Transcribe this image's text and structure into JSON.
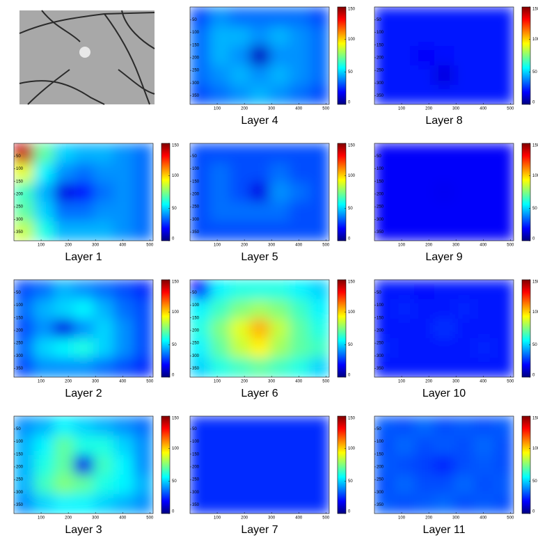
{
  "chart_data": [
    {
      "type": "heatmap",
      "title": "Layer 1",
      "colormap": "jet",
      "xlim": [
        0,
        512
      ],
      "ylim": [
        0,
        384
      ],
      "y_direction": "reverse",
      "xticks": [
        100,
        200,
        300,
        400,
        500
      ],
      "yticks": [
        50,
        100,
        150,
        200,
        250,
        300,
        350
      ],
      "clim": [
        0,
        150
      ],
      "cticks": [
        0,
        50,
        100,
        150
      ],
      "values": [
        [
          140,
          70,
          50,
          45,
          45,
          40,
          35
        ],
        [
          90,
          55,
          40,
          35,
          40,
          40,
          35
        ],
        [
          65,
          45,
          15,
          20,
          35,
          40,
          35
        ],
        [
          70,
          50,
          35,
          35,
          40,
          40,
          35
        ],
        [
          85,
          60,
          45,
          45,
          45,
          40,
          35
        ]
      ]
    },
    {
      "type": "heatmap",
      "title": "Layer 2",
      "colormap": "jet",
      "xlim": [
        0,
        512
      ],
      "ylim": [
        0,
        384
      ],
      "y_direction": "reverse",
      "xticks": [
        100,
        200,
        300,
        400,
        500
      ],
      "yticks": [
        50,
        100,
        150,
        200,
        250,
        300,
        350
      ],
      "clim": [
        0,
        150
      ],
      "cticks": [
        0,
        50,
        100,
        150
      ],
      "values": [
        [
          30,
          35,
          45,
          40,
          35,
          30,
          25
        ],
        [
          35,
          45,
          50,
          55,
          45,
          35,
          30
        ],
        [
          30,
          40,
          15,
          40,
          50,
          40,
          30
        ],
        [
          35,
          50,
          55,
          60,
          50,
          40,
          30
        ],
        [
          30,
          40,
          40,
          40,
          35,
          30,
          25
        ]
      ]
    },
    {
      "type": "heatmap",
      "title": "Layer 3",
      "colormap": "jet",
      "xlim": [
        0,
        512
      ],
      "ylim": [
        0,
        384
      ],
      "y_direction": "reverse",
      "xticks": [
        100,
        200,
        300,
        400,
        500
      ],
      "yticks": [
        50,
        100,
        150,
        200,
        250,
        300,
        350
      ],
      "clim": [
        0,
        150
      ],
      "cticks": [
        0,
        50,
        100,
        150
      ],
      "values": [
        [
          40,
          45,
          55,
          50,
          45,
          40,
          35
        ],
        [
          45,
          55,
          70,
          60,
          60,
          50,
          40
        ],
        [
          45,
          60,
          70,
          15,
          65,
          55,
          40
        ],
        [
          45,
          65,
          75,
          70,
          60,
          55,
          45
        ],
        [
          40,
          50,
          55,
          55,
          50,
          45,
          40
        ]
      ]
    },
    {
      "type": "heatmap",
      "title": "Layer 4",
      "colormap": "jet",
      "xlim": [
        0,
        512
      ],
      "ylim": [
        0,
        384
      ],
      "y_direction": "reverse",
      "xticks": [
        100,
        200,
        300,
        400,
        500
      ],
      "yticks": [
        50,
        100,
        150,
        200,
        250,
        300,
        350
      ],
      "clim": [
        0,
        150
      ],
      "cticks": [
        0,
        50,
        100,
        150
      ],
      "values": [
        [
          30,
          40,
          35,
          35,
          35,
          35,
          30
        ],
        [
          35,
          45,
          45,
          40,
          45,
          40,
          35
        ],
        [
          35,
          45,
          40,
          10,
          40,
          40,
          35
        ],
        [
          35,
          40,
          45,
          40,
          45,
          40,
          35
        ],
        [
          30,
          35,
          40,
          45,
          40,
          35,
          30
        ]
      ]
    },
    {
      "type": "heatmap",
      "title": "Layer 5",
      "colormap": "jet",
      "xlim": [
        0,
        512
      ],
      "ylim": [
        0,
        384
      ],
      "y_direction": "reverse",
      "xticks": [
        100,
        200,
        300,
        400,
        500
      ],
      "yticks": [
        50,
        100,
        150,
        200,
        250,
        300,
        350
      ],
      "clim": [
        0,
        150
      ],
      "cticks": [
        0,
        50,
        100,
        150
      ],
      "values": [
        [
          30,
          30,
          30,
          30,
          30,
          30,
          30
        ],
        [
          30,
          35,
          30,
          30,
          35,
          30,
          30
        ],
        [
          30,
          35,
          30,
          15,
          40,
          35,
          30
        ],
        [
          30,
          35,
          35,
          35,
          35,
          30,
          30
        ],
        [
          30,
          30,
          30,
          30,
          30,
          30,
          30
        ]
      ]
    },
    {
      "type": "heatmap",
      "title": "Layer 6",
      "colormap": "jet",
      "xlim": [
        0,
        512
      ],
      "ylim": [
        0,
        384
      ],
      "y_direction": "reverse",
      "xticks": [
        100,
        200,
        300,
        400,
        500
      ],
      "yticks": [
        50,
        100,
        150,
        200,
        250,
        300,
        350
      ],
      "clim": [
        0,
        150
      ],
      "cticks": [
        0,
        50,
        100,
        150
      ],
      "values": [
        [
          20,
          55,
          60,
          60,
          60,
          55,
          50
        ],
        [
          55,
          65,
          75,
          80,
          75,
          65,
          55
        ],
        [
          60,
          75,
          90,
          105,
          85,
          70,
          60
        ],
        [
          55,
          70,
          85,
          95,
          80,
          70,
          65
        ],
        [
          50,
          60,
          65,
          70,
          65,
          60,
          50
        ]
      ]
    },
    {
      "type": "heatmap",
      "title": "Layer 7",
      "colormap": "jet",
      "xlim": [
        0,
        512
      ],
      "ylim": [
        0,
        384
      ],
      "y_direction": "reverse",
      "xticks": [
        100,
        200,
        300,
        400,
        500
      ],
      "yticks": [
        50,
        100,
        150,
        200,
        250,
        300,
        350
      ],
      "clim": [
        0,
        150
      ],
      "cticks": [
        0,
        50,
        100,
        150
      ],
      "values": [
        [
          25,
          25,
          25,
          25,
          25,
          25,
          25
        ],
        [
          25,
          25,
          25,
          25,
          25,
          25,
          25
        ],
        [
          25,
          25,
          25,
          25,
          25,
          25,
          25
        ],
        [
          25,
          25,
          25,
          25,
          25,
          25,
          25
        ],
        [
          25,
          25,
          25,
          25,
          25,
          25,
          25
        ]
      ]
    },
    {
      "type": "heatmap",
      "title": "Layer 8",
      "colormap": "jet",
      "xlim": [
        0,
        512
      ],
      "ylim": [
        0,
        384
      ],
      "y_direction": "reverse",
      "xticks": [
        100,
        200,
        300,
        400,
        500
      ],
      "yticks": [
        50,
        100,
        150,
        200,
        250,
        300,
        350
      ],
      "clim": [
        0,
        150
      ],
      "cticks": [
        0,
        50,
        100,
        150
      ],
      "values": [
        [
          22,
          22,
          22,
          22,
          22,
          22,
          22
        ],
        [
          22,
          22,
          22,
          22,
          22,
          22,
          22
        ],
        [
          22,
          22,
          18,
          20,
          22,
          22,
          22
        ],
        [
          22,
          22,
          22,
          14,
          22,
          22,
          22
        ],
        [
          22,
          22,
          22,
          22,
          22,
          22,
          22
        ]
      ]
    },
    {
      "type": "heatmap",
      "title": "Layer 9",
      "colormap": "jet",
      "xlim": [
        0,
        512
      ],
      "ylim": [
        0,
        384
      ],
      "y_direction": "reverse",
      "xticks": [
        100,
        200,
        300,
        400,
        500
      ],
      "yticks": [
        50,
        100,
        150,
        200,
        250,
        300,
        350
      ],
      "clim": [
        0,
        150
      ],
      "cticks": [
        0,
        50,
        100,
        150
      ],
      "values": [
        [
          18,
          18,
          18,
          18,
          18,
          18,
          18
        ],
        [
          18,
          18,
          18,
          18,
          18,
          18,
          18
        ],
        [
          18,
          18,
          18,
          17,
          18,
          18,
          18
        ],
        [
          18,
          18,
          18,
          18,
          18,
          18,
          18
        ],
        [
          18,
          18,
          18,
          18,
          18,
          18,
          18
        ]
      ]
    },
    {
      "type": "heatmap",
      "title": "Layer 10",
      "colormap": "jet",
      "xlim": [
        0,
        512
      ],
      "ylim": [
        0,
        384
      ],
      "y_direction": "reverse",
      "xticks": [
        100,
        200,
        300,
        400,
        500
      ],
      "yticks": [
        50,
        100,
        150,
        200,
        250,
        300,
        350
      ],
      "clim": [
        0,
        150
      ],
      "cticks": [
        0,
        50,
        100,
        150
      ],
      "values": [
        [
          22,
          22,
          20,
          22,
          22,
          22,
          22
        ],
        [
          22,
          24,
          22,
          22,
          24,
          22,
          22
        ],
        [
          22,
          22,
          22,
          26,
          22,
          22,
          22
        ],
        [
          24,
          22,
          22,
          22,
          22,
          24,
          22
        ],
        [
          22,
          22,
          22,
          22,
          22,
          22,
          22
        ]
      ]
    },
    {
      "type": "heatmap",
      "title": "Layer 11",
      "colormap": "jet",
      "xlim": [
        0,
        512
      ],
      "ylim": [
        0,
        384
      ],
      "y_direction": "reverse",
      "xticks": [
        100,
        200,
        300,
        400,
        500
      ],
      "yticks": [
        50,
        100,
        150,
        200,
        250,
        300,
        350
      ],
      "clim": [
        0,
        150
      ],
      "cticks": [
        0,
        50,
        100,
        150
      ],
      "values": [
        [
          32,
          30,
          34,
          30,
          32,
          30,
          32
        ],
        [
          30,
          34,
          30,
          32,
          30,
          34,
          30
        ],
        [
          32,
          30,
          28,
          24,
          30,
          32,
          30
        ],
        [
          30,
          34,
          30,
          30,
          34,
          30,
          32
        ],
        [
          32,
          30,
          32,
          34,
          30,
          32,
          30
        ]
      ]
    }
  ]
}
